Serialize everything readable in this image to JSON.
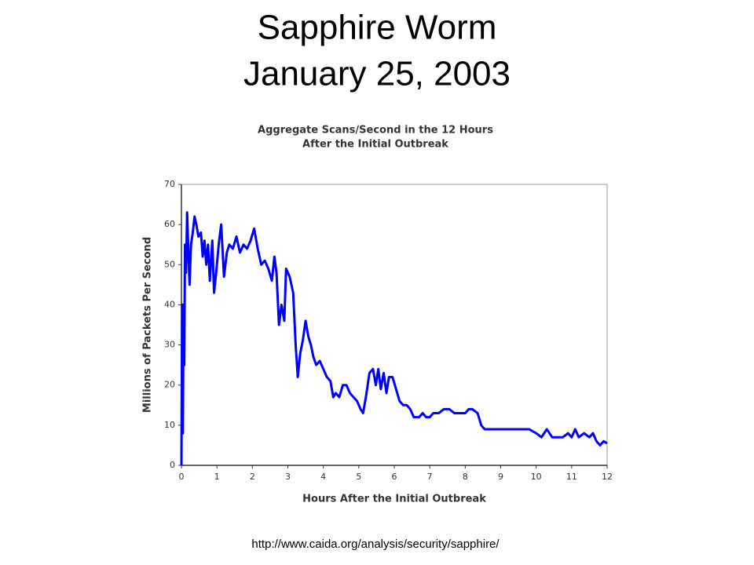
{
  "slide": {
    "title_line1": "Sapphire Worm",
    "title_line2": "January 25, 2003",
    "source_url": "http://www.caida.org/analysis/security/sapphire/"
  },
  "chart_data": {
    "type": "line",
    "title_line1": "Aggregate Scans/Second in the 12 Hours",
    "title_line2": "After the Initial Outbreak",
    "x_label": "Hours After the Initial Outbreak",
    "y_label": "Millions of Packets Per Second",
    "xlim": [
      0,
      12
    ],
    "ylim": [
      0,
      70
    ],
    "xticks": [
      0,
      1,
      2,
      3,
      4,
      5,
      6,
      7,
      8,
      9,
      10,
      11,
      12
    ],
    "yticks": [
      0,
      10,
      20,
      30,
      40,
      50,
      60,
      70
    ],
    "grid": false,
    "series": [
      {
        "name": "Scans/Second",
        "color": "#0000ff",
        "x": [
          0,
          0.02,
          0.04,
          0.06,
          0.08,
          0.1,
          0.13,
          0.16,
          0.2,
          0.23,
          0.27,
          0.32,
          0.37,
          0.42,
          0.48,
          0.55,
          0.6,
          0.65,
          0.7,
          0.75,
          0.8,
          0.87,
          0.92,
          0.98,
          1.05,
          1.12,
          1.2,
          1.28,
          1.35,
          1.45,
          1.55,
          1.65,
          1.75,
          1.85,
          1.95,
          2.05,
          2.15,
          2.25,
          2.35,
          2.45,
          2.55,
          2.62,
          2.68,
          2.75,
          2.82,
          2.9,
          2.95,
          3.05,
          3.15,
          3.22,
          3.28,
          3.35,
          3.42,
          3.5,
          3.58,
          3.65,
          3.72,
          3.8,
          3.9,
          4.0,
          4.1,
          4.2,
          4.28,
          4.35,
          4.45,
          4.55,
          4.65,
          4.75,
          4.85,
          4.95,
          5.05,
          5.12,
          5.2,
          5.3,
          5.4,
          5.48,
          5.55,
          5.62,
          5.7,
          5.78,
          5.85,
          5.95,
          6.05,
          6.15,
          6.25,
          6.35,
          6.45,
          6.55,
          6.7,
          6.8,
          6.9,
          7.0,
          7.1,
          7.25,
          7.4,
          7.55,
          7.7,
          7.85,
          8.0,
          8.1,
          8.2,
          8.35,
          8.45,
          8.55,
          8.7,
          8.85,
          9.0,
          9.2,
          9.4,
          9.6,
          9.8,
          10.0,
          10.15,
          10.3,
          10.45,
          10.6,
          10.75,
          10.9,
          11.0,
          11.1,
          11.2,
          11.35,
          11.5,
          11.6,
          11.7,
          11.8,
          11.9,
          12.0
        ],
        "values": [
          0,
          40,
          8,
          40,
          25,
          55,
          48,
          63,
          52,
          45,
          55,
          58,
          62,
          60,
          57,
          58,
          52,
          56,
          50,
          55,
          46,
          56,
          43,
          48,
          55,
          60,
          47,
          53,
          55,
          54,
          57,
          53,
          55,
          54,
          56,
          59,
          54,
          50,
          51,
          49,
          46,
          52,
          48,
          35,
          40,
          36,
          49,
          47,
          43,
          30,
          22,
          28,
          31,
          36,
          32,
          30,
          27,
          25,
          26,
          24,
          22,
          21,
          17,
          18,
          17,
          20,
          20,
          18,
          17,
          16,
          14,
          13,
          17,
          23,
          24,
          20,
          24,
          19,
          23,
          18,
          22,
          22,
          19,
          16,
          15,
          15,
          14,
          12,
          12,
          13,
          12,
          12,
          13,
          13,
          14,
          14,
          13,
          13,
          13,
          14,
          14,
          13,
          10,
          9,
          9,
          9,
          9,
          9,
          9,
          9,
          9,
          8,
          7,
          9,
          7,
          7,
          7,
          8,
          7,
          9,
          7,
          8,
          7,
          8,
          6,
          5,
          6,
          5.5
        ]
      }
    ]
  }
}
